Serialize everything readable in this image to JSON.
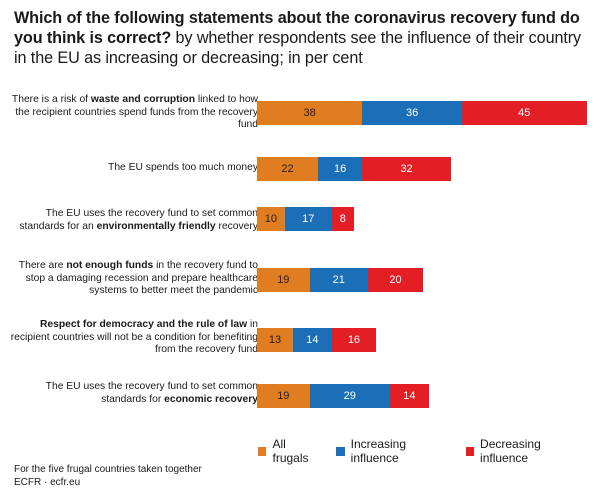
{
  "title": {
    "bold": "Which of the following statements about the coronavirus recovery fund do you think is correct?",
    "rest": " by whether respondents see the influence of their country in the EU as increasing or decreasing; in per cent"
  },
  "colors": {
    "All frugals": "#e07d20",
    "Increasing influence": "#1a6fb6",
    "Decreasing influence": "#e31e24"
  },
  "chart_data": {
    "type": "bar",
    "orientation": "horizontal",
    "stacked": true,
    "unit": "per cent",
    "categories": [
      "There is a risk of waste and corruption linked to how the recipient countries spend funds from the recovery fund",
      "The EU spends too much money",
      "The EU uses the recovery fund to set common standards for an environmentally friendly recovery",
      "There are not enough funds in the recovery fund to stop a damaging recession and prepare healthcare systems to better meet the pandemic",
      "Respect for democracy and the rule of law in recipient countries will not be a condition for benefiting from the recovery fund",
      "The EU uses the recovery fund to set common standards for economic recovery"
    ],
    "category_parts": [
      [
        {
          "t": "There is a risk of ",
          "b": false
        },
        {
          "t": "waste and corruption",
          "b": true
        },
        {
          "t": " linked to how the recipient countries spend funds from the recovery fund",
          "b": false
        }
      ],
      [
        {
          "t": "The EU spends too much money",
          "b": false
        }
      ],
      [
        {
          "t": "The EU uses the recovery fund to set common standards for an ",
          "b": false
        },
        {
          "t": "environmentally friendly",
          "b": true
        },
        {
          "t": " recovery",
          "b": false
        }
      ],
      [
        {
          "t": "There are ",
          "b": false
        },
        {
          "t": "not enough funds",
          "b": true
        },
        {
          "t": " in the recovery fund to stop a damaging recession and prepare healthcare systems to better meet the pandemic",
          "b": false
        }
      ],
      [
        {
          "t": "Respect for democracy and the rule of law",
          "b": true
        },
        {
          "t": " in recipient countries will not be a condition for benefiting from the recovery fund",
          "b": false
        }
      ],
      [
        {
          "t": "The EU uses the recovery fund to set common standards for ",
          "b": false
        },
        {
          "t": "economic recovery",
          "b": true
        }
      ]
    ],
    "series": [
      {
        "name": "All frugals",
        "values": [
          38,
          22,
          10,
          19,
          13,
          19
        ]
      },
      {
        "name": "Increasing influence",
        "values": [
          36,
          16,
          17,
          21,
          14,
          29
        ]
      },
      {
        "name": "Decreasing influence",
        "values": [
          45,
          32,
          8,
          20,
          16,
          14
        ]
      }
    ],
    "legend_position": "bottom-right",
    "xlim": [
      0,
      119
    ]
  },
  "footer": {
    "note": "For the five frugal countries taken together",
    "source": "ECFR · ecfr.eu"
  }
}
